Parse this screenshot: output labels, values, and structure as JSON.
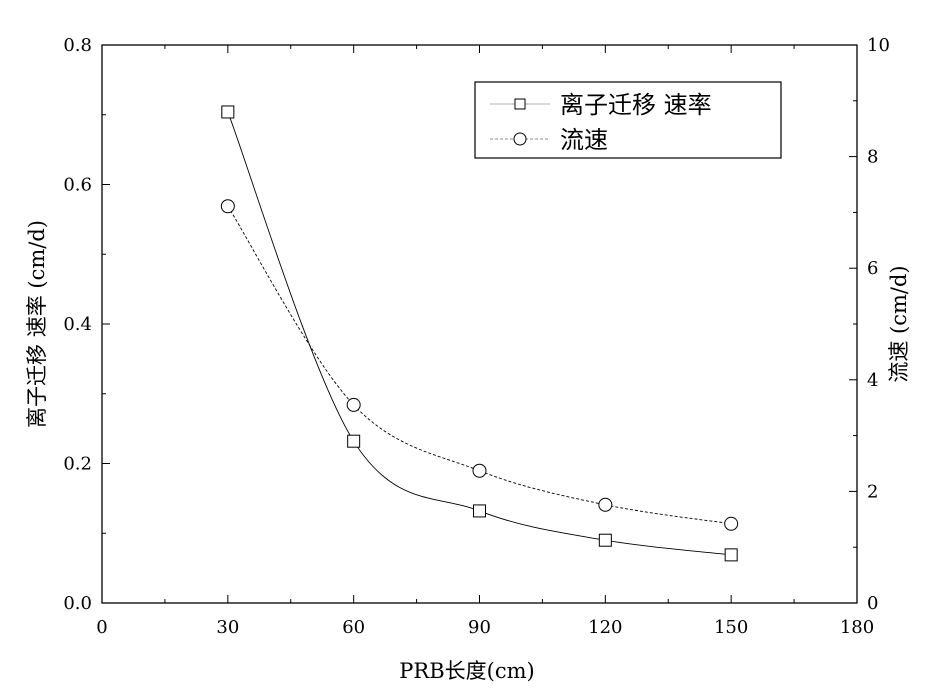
{
  "chart_data": {
    "type": "line",
    "xlabel": "PRB长度(cm)",
    "ylabel": "离子迁移 速率 (cm/d)",
    "y2label": "流速 (cm/d)",
    "xlim": [
      0,
      180
    ],
    "ylim": [
      0,
      0.8
    ],
    "y2lim": [
      0,
      10
    ],
    "xticks": [
      "0",
      "30",
      "60",
      "90",
      "120",
      "150",
      "180"
    ],
    "yticks": [
      "0.0",
      "0.2",
      "0.4",
      "0.6",
      "0.8"
    ],
    "y2ticks": [
      "0",
      "2",
      "4",
      "6",
      "8",
      "10"
    ],
    "grid": false,
    "legend_position": "top-right",
    "x": [
      30,
      60,
      90,
      120,
      150
    ],
    "series": [
      {
        "name": "离子迁移 速率",
        "axis": "left",
        "marker": "square",
        "line": "solid",
        "values": [
          0.704,
          0.232,
          0.132,
          0.09,
          0.069
        ]
      },
      {
        "name": "流速",
        "axis": "right",
        "marker": "circle",
        "line": "dashed",
        "values": [
          7.11,
          3.55,
          2.37,
          1.76,
          1.42
        ]
      }
    ]
  }
}
